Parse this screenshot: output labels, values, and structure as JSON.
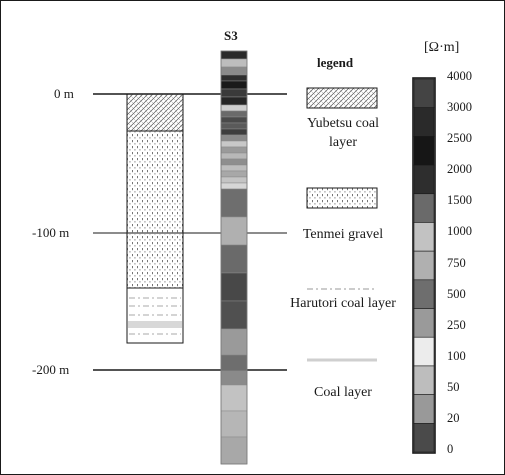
{
  "depth_markers": [
    {
      "label": "0 m"
    },
    {
      "label": "-100 m"
    },
    {
      "label": "-200 m"
    }
  ],
  "borehole_title": "S3",
  "legend": {
    "title": "legend",
    "items": [
      {
        "label": "Yubetsu coal layer",
        "pattern": "crosshatch"
      },
      {
        "label": "Tenmei gravel",
        "pattern": "dots"
      },
      {
        "label": "Harutori coal layer",
        "pattern": "dash-dot"
      },
      {
        "label": "Coal layer",
        "pattern": "solid-line"
      }
    ]
  },
  "color_scale": {
    "unit": "[Ω·m]",
    "labels": [
      "4000",
      "3000",
      "2500",
      "2000",
      "1500",
      "1000",
      "750",
      "500",
      "250",
      "100",
      "50",
      "20",
      "0"
    ],
    "colors": [
      "#444444",
      "#2a2a2a",
      "#161616",
      "#2e2e2e",
      "#6a6a6a",
      "#c2c2c2",
      "#b0b0b0",
      "#6e6e6e",
      "#9a9a9a",
      "#ececec",
      "#bdbdbd",
      "#999999",
      "#4a4a4a"
    ]
  }
}
